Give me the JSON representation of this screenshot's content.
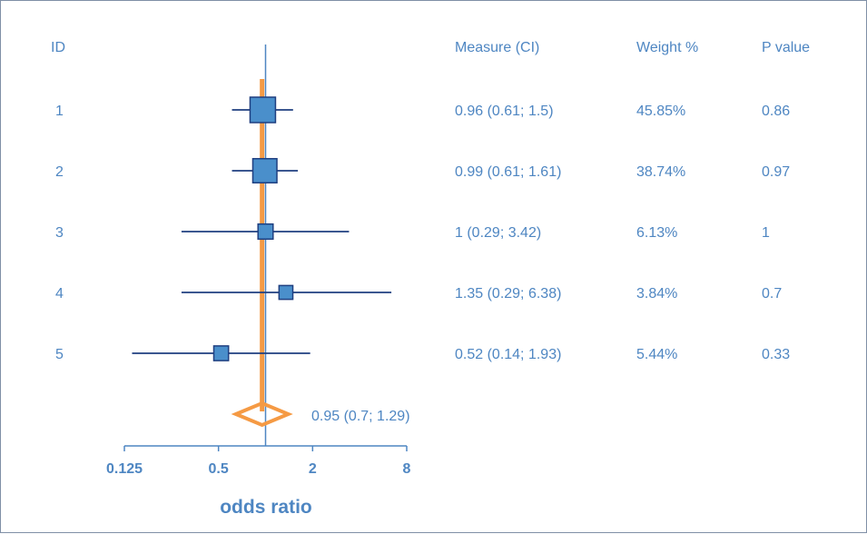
{
  "chart_data": {
    "type": "forest",
    "headers": {
      "id": "ID",
      "measure": "Measure (CI)",
      "weight": "Weight %",
      "p": "P value"
    },
    "xlabel": "odds ratio",
    "x_scale": "log2",
    "xlim": [
      0.125,
      8
    ],
    "x_ticks": [
      {
        "value": 0.125,
        "label": "0.125"
      },
      {
        "value": 0.5,
        "label": "0.5"
      },
      {
        "value": 2,
        "label": "2"
      },
      {
        "value": 8,
        "label": "8"
      }
    ],
    "reference_line": 1,
    "studies": [
      {
        "id": "1",
        "or": 0.96,
        "lo": 0.61,
        "hi": 1.5,
        "measure": "0.96 (0.61; 1.5)",
        "weight": 45.85,
        "weight_label": "45.85%",
        "p": "0.86"
      },
      {
        "id": "2",
        "or": 0.99,
        "lo": 0.61,
        "hi": 1.61,
        "measure": "0.99 (0.61; 1.61)",
        "weight": 38.74,
        "weight_label": "38.74%",
        "p": "0.97"
      },
      {
        "id": "3",
        "or": 1,
        "lo": 0.29,
        "hi": 3.42,
        "measure": "1 (0.29; 3.42)",
        "weight": 6.13,
        "weight_label": "6.13%",
        "p": "1"
      },
      {
        "id": "4",
        "or": 1.35,
        "lo": 0.29,
        "hi": 6.38,
        "measure": "1.35 (0.29; 6.38)",
        "weight": 3.84,
        "weight_label": "3.84%",
        "p": "0.7"
      },
      {
        "id": "5",
        "or": 0.52,
        "lo": 0.14,
        "hi": 1.93,
        "measure": "0.52 (0.14; 1.93)",
        "weight": 5.44,
        "weight_label": "5.44%",
        "p": "0.33"
      }
    ],
    "pooled": {
      "or": 0.95,
      "lo": 0.7,
      "hi": 1.29,
      "label": "0.95 (0.7; 1.29)"
    },
    "colors": {
      "text": "#4e86c2",
      "box_fill": "#4a8fcb",
      "box_stroke": "#1f3f80",
      "ci_line": "#1f3f80",
      "pooled": "#f59a44",
      "axis": "#4e86c2"
    }
  }
}
